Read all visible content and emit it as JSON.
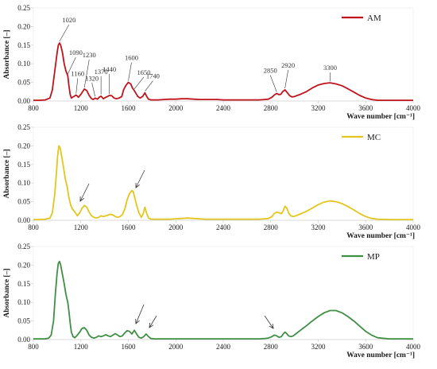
{
  "chart_data": [
    {
      "type": "line",
      "xlabel": "Wave number [cm⁻¹]",
      "ylabel": "Absorbance [–]",
      "xlim": [
        800,
        4000
      ],
      "ylim": [
        0,
        0.25
      ],
      "xticks": [
        800,
        1200,
        1600,
        2000,
        2400,
        2800,
        3200,
        3600,
        4000
      ],
      "yticks": [
        0,
        0.05,
        0.1,
        0.15,
        0.2,
        0.25
      ],
      "ytick_labels": [
        "0.00",
        "0.05",
        "0.10",
        "0.15",
        "0.20",
        "0.25"
      ],
      "legend": "top-right",
      "series": [
        {
          "name": "AM",
          "color": "#c0131c",
          "x": [
            800,
            850,
            900,
            940,
            960,
            980,
            1000,
            1010,
            1020,
            1030,
            1045,
            1060,
            1075,
            1090,
            1100,
            1110,
            1120,
            1140,
            1160,
            1180,
            1200,
            1215,
            1230,
            1250,
            1270,
            1290,
            1305,
            1320,
            1340,
            1355,
            1370,
            1390,
            1410,
            1425,
            1440,
            1460,
            1480,
            1500,
            1520,
            1545,
            1560,
            1580,
            1600,
            1620,
            1635,
            1650,
            1665,
            1680,
            1700,
            1720,
            1740,
            1755,
            1770,
            1790,
            1820,
            1850,
            1900,
            1950,
            2000,
            2050,
            2100,
            2150,
            2200,
            2250,
            2300,
            2350,
            2400,
            2450,
            2500,
            2550,
            2600,
            2650,
            2700,
            2750,
            2780,
            2810,
            2830,
            2850,
            2870,
            2885,
            2900,
            2920,
            2940,
            2960,
            2980,
            3000,
            3050,
            3100,
            3150,
            3200,
            3250,
            3300,
            3350,
            3400,
            3450,
            3500,
            3550,
            3600,
            3650,
            3700,
            3800,
            3900,
            4000
          ],
          "y": [
            0.002,
            0.002,
            0.003,
            0.008,
            0.03,
            0.08,
            0.13,
            0.15,
            0.156,
            0.15,
            0.13,
            0.1,
            0.08,
            0.068,
            0.04,
            0.018,
            0.008,
            0.012,
            0.016,
            0.01,
            0.018,
            0.025,
            0.032,
            0.028,
            0.015,
            0.006,
            0.004,
            0.008,
            0.005,
            0.01,
            0.013,
            0.006,
            0.01,
            0.012,
            0.015,
            0.014,
            0.008,
            0.006,
            0.008,
            0.012,
            0.03,
            0.042,
            0.05,
            0.046,
            0.035,
            0.028,
            0.02,
            0.012,
            0.008,
            0.012,
            0.022,
            0.012,
            0.005,
            0.003,
            0.003,
            0.003,
            0.004,
            0.005,
            0.005,
            0.006,
            0.006,
            0.005,
            0.004,
            0.004,
            0.004,
            0.004,
            0.003,
            0.003,
            0.003,
            0.003,
            0.003,
            0.003,
            0.003,
            0.004,
            0.005,
            0.01,
            0.016,
            0.02,
            0.017,
            0.018,
            0.025,
            0.03,
            0.022,
            0.014,
            0.011,
            0.012,
            0.018,
            0.025,
            0.035,
            0.043,
            0.047,
            0.049,
            0.046,
            0.041,
            0.033,
            0.024,
            0.015,
            0.008,
            0.004,
            0.002,
            0.002,
            0.002,
            0.002
          ]
        }
      ],
      "annotations": [
        {
          "text": "1020",
          "x": 1020,
          "y": 0.156
        },
        {
          "text": "1090",
          "x": 1090,
          "y": 0.068
        },
        {
          "text": "1160",
          "x": 1160,
          "y": 0.016
        },
        {
          "text": "1230",
          "x": 1230,
          "y": 0.032
        },
        {
          "text": "1320",
          "x": 1320,
          "y": 0.008
        },
        {
          "text": "1370",
          "x": 1370,
          "y": 0.013
        },
        {
          "text": "1440",
          "x": 1440,
          "y": 0.015
        },
        {
          "text": "1600",
          "x": 1600,
          "y": 0.05
        },
        {
          "text": "1650",
          "x": 1650,
          "y": 0.028
        },
        {
          "text": "1740",
          "x": 1740,
          "y": 0.022
        },
        {
          "text": "2850",
          "x": 2850,
          "y": 0.02
        },
        {
          "text": "2920",
          "x": 2920,
          "y": 0.03
        },
        {
          "text": "3300",
          "x": 3300,
          "y": 0.049
        }
      ]
    },
    {
      "type": "line",
      "xlabel": "Wave number [cm⁻¹]",
      "ylabel": "Absorbance [–]",
      "xlim": [
        800,
        4000
      ],
      "ylim": [
        0,
        0.25
      ],
      "xticks": [
        800,
        1200,
        1600,
        2000,
        2400,
        2800,
        3200,
        3600,
        4000
      ],
      "yticks": [
        0,
        0.05,
        0.1,
        0.15,
        0.2,
        0.25
      ],
      "ytick_labels": [
        "0.00",
        "0.05",
        "0.10",
        "0.15",
        "0.20",
        "0.25"
      ],
      "legend": "top-right",
      "series": [
        {
          "name": "MC",
          "color": "#e3c51e",
          "x": [
            800,
            850,
            900,
            940,
            960,
            980,
            995,
            1005,
            1015,
            1025,
            1040,
            1055,
            1070,
            1085,
            1100,
            1115,
            1130,
            1150,
            1170,
            1190,
            1210,
            1230,
            1250,
            1270,
            1290,
            1310,
            1330,
            1350,
            1370,
            1390,
            1410,
            1430,
            1450,
            1470,
            1490,
            1510,
            1530,
            1550,
            1570,
            1590,
            1610,
            1630,
            1640,
            1655,
            1670,
            1690,
            1710,
            1725,
            1740,
            1755,
            1770,
            1790,
            1820,
            1850,
            1900,
            1950,
            2000,
            2050,
            2100,
            2150,
            2200,
            2250,
            2300,
            2350,
            2400,
            2450,
            2500,
            2550,
            2600,
            2650,
            2700,
            2750,
            2780,
            2810,
            2830,
            2850,
            2870,
            2890,
            2905,
            2920,
            2935,
            2950,
            2970,
            2990,
            3010,
            3050,
            3100,
            3150,
            3200,
            3250,
            3300,
            3350,
            3400,
            3450,
            3500,
            3550,
            3600,
            3650,
            3700,
            3800,
            3900,
            4000
          ],
          "y": [
            0.002,
            0.002,
            0.003,
            0.006,
            0.02,
            0.07,
            0.13,
            0.175,
            0.2,
            0.195,
            0.17,
            0.14,
            0.11,
            0.09,
            0.06,
            0.04,
            0.03,
            0.022,
            0.012,
            0.02,
            0.032,
            0.04,
            0.035,
            0.022,
            0.012,
            0.008,
            0.006,
            0.008,
            0.012,
            0.01,
            0.012,
            0.014,
            0.016,
            0.014,
            0.01,
            0.008,
            0.01,
            0.015,
            0.03,
            0.055,
            0.072,
            0.08,
            0.078,
            0.06,
            0.04,
            0.02,
            0.008,
            0.018,
            0.035,
            0.018,
            0.006,
            0.003,
            0.003,
            0.003,
            0.003,
            0.003,
            0.004,
            0.005,
            0.006,
            0.005,
            0.004,
            0.003,
            0.003,
            0.003,
            0.003,
            0.003,
            0.003,
            0.003,
            0.003,
            0.003,
            0.003,
            0.004,
            0.005,
            0.01,
            0.018,
            0.022,
            0.02,
            0.018,
            0.025,
            0.038,
            0.033,
            0.02,
            0.012,
            0.01,
            0.012,
            0.017,
            0.024,
            0.033,
            0.042,
            0.049,
            0.052,
            0.05,
            0.045,
            0.037,
            0.028,
            0.018,
            0.01,
            0.005,
            0.003,
            0.002,
            0.002,
            0.002
          ]
        }
      ],
      "annotations": []
    },
    {
      "type": "line",
      "xlabel": "Wave number [cm⁻¹]",
      "ylabel": "Absorbance [–]",
      "xlim": [
        800,
        4000
      ],
      "ylim": [
        0,
        0.25
      ],
      "xticks": [
        800,
        1200,
        1600,
        2000,
        2400,
        2800,
        3200,
        3600,
        4000
      ],
      "yticks": [
        0,
        0.05,
        0.1,
        0.15,
        0.2,
        0.25
      ],
      "ytick_labels": [
        "0.00",
        "0.05",
        "0.10",
        "0.15",
        "0.20",
        "0.25"
      ],
      "legend": "top-right",
      "series": [
        {
          "name": "MP",
          "color": "#3f8f45",
          "x": [
            800,
            850,
            900,
            930,
            950,
            970,
            985,
            1000,
            1010,
            1020,
            1030,
            1045,
            1060,
            1075,
            1090,
            1100,
            1110,
            1120,
            1135,
            1150,
            1170,
            1190,
            1210,
            1230,
            1250,
            1270,
            1290,
            1310,
            1330,
            1350,
            1370,
            1390,
            1410,
            1430,
            1450,
            1470,
            1490,
            1510,
            1530,
            1550,
            1570,
            1590,
            1610,
            1630,
            1650,
            1670,
            1690,
            1710,
            1730,
            1750,
            1770,
            1790,
            1820,
            1850,
            1900,
            1950,
            2000,
            2050,
            2100,
            2150,
            2200,
            2250,
            2300,
            2350,
            2400,
            2450,
            2500,
            2550,
            2600,
            2650,
            2700,
            2750,
            2780,
            2810,
            2830,
            2850,
            2870,
            2890,
            2905,
            2920,
            2935,
            2950,
            2970,
            2990,
            3010,
            3050,
            3100,
            3150,
            3200,
            3250,
            3300,
            3350,
            3400,
            3450,
            3500,
            3550,
            3600,
            3650,
            3700,
            3800,
            3900,
            4000
          ],
          "y": [
            0.002,
            0.002,
            0.002,
            0.004,
            0.012,
            0.05,
            0.12,
            0.18,
            0.205,
            0.21,
            0.2,
            0.175,
            0.15,
            0.12,
            0.1,
            0.075,
            0.045,
            0.02,
            0.008,
            0.005,
            0.012,
            0.02,
            0.03,
            0.032,
            0.025,
            0.012,
            0.006,
            0.004,
            0.006,
            0.01,
            0.008,
            0.01,
            0.013,
            0.01,
            0.008,
            0.012,
            0.016,
            0.012,
            0.008,
            0.01,
            0.018,
            0.024,
            0.022,
            0.015,
            0.025,
            0.015,
            0.006,
            0.004,
            0.008,
            0.015,
            0.008,
            0.003,
            0.002,
            0.002,
            0.002,
            0.002,
            0.002,
            0.002,
            0.002,
            0.002,
            0.002,
            0.002,
            0.002,
            0.002,
            0.002,
            0.002,
            0.002,
            0.002,
            0.002,
            0.002,
            0.002,
            0.003,
            0.004,
            0.008,
            0.012,
            0.01,
            0.006,
            0.008,
            0.015,
            0.02,
            0.016,
            0.01,
            0.008,
            0.01,
            0.015,
            0.025,
            0.037,
            0.05,
            0.062,
            0.072,
            0.078,
            0.078,
            0.072,
            0.062,
            0.05,
            0.036,
            0.022,
            0.012,
            0.005,
            0.002,
            0.002,
            0.002
          ]
        }
      ],
      "annotations": []
    }
  ]
}
